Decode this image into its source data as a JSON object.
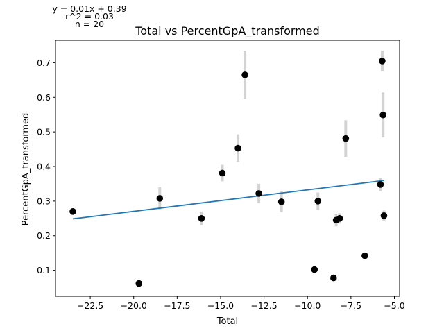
{
  "chart_data": {
    "type": "scatter",
    "title": "Total vs PercentGpA_transformed",
    "xlabel": "Total",
    "ylabel": "PercentGpA_transformed",
    "xlim": [
      -24.5,
      -4.7
    ],
    "ylim": [
      0.025,
      0.765
    ],
    "x_ticks": [
      -22.5,
      -20.0,
      -17.5,
      -15.0,
      -12.5,
      -10.0,
      -7.5,
      -5.0
    ],
    "x_tick_labels": [
      "−22.5",
      "−20.0",
      "−17.5",
      "−15.0",
      "−12.5",
      "−10.0",
      "−7.5",
      "−5.0"
    ],
    "y_ticks": [
      0.1,
      0.2,
      0.3,
      0.4,
      0.5,
      0.6,
      0.7
    ],
    "y_tick_labels": [
      "0.1",
      "0.2",
      "0.3",
      "0.4",
      "0.5",
      "0.6",
      "0.7"
    ],
    "annotations": [
      "y = 0.01x + 0.39",
      "r^2 = 0.03",
      "n = 20"
    ],
    "grid": false,
    "colors": {
      "points": "#000000",
      "fit_line": "#1f77b4",
      "error_bars": "#d3d3d3"
    },
    "fit_line": {
      "slope": 0.0062,
      "intercept": 0.3944,
      "x_range": [
        -23.5,
        -5.6
      ]
    },
    "points": [
      {
        "x": -23.5,
        "y": 0.27,
        "err": 0.0
      },
      {
        "x": -19.7,
        "y": 0.062,
        "err": 0.0
      },
      {
        "x": -18.5,
        "y": 0.308,
        "err": 0.032
      },
      {
        "x": -16.1,
        "y": 0.25,
        "err": 0.02
      },
      {
        "x": -14.9,
        "y": 0.381,
        "err": 0.024
      },
      {
        "x": -14.0,
        "y": 0.453,
        "err": 0.04
      },
      {
        "x": -13.6,
        "y": 0.665,
        "err": 0.07
      },
      {
        "x": -12.8,
        "y": 0.322,
        "err": 0.028
      },
      {
        "x": -11.5,
        "y": 0.298,
        "err": 0.03
      },
      {
        "x": -9.6,
        "y": 0.102,
        "err": 0.0
      },
      {
        "x": -9.4,
        "y": 0.3,
        "err": 0.025
      },
      {
        "x": -8.5,
        "y": 0.078,
        "err": 0.0
      },
      {
        "x": -8.35,
        "y": 0.245,
        "err": 0.018
      },
      {
        "x": -8.15,
        "y": 0.25,
        "err": 0.015
      },
      {
        "x": -7.8,
        "y": 0.481,
        "err": 0.053
      },
      {
        "x": -6.7,
        "y": 0.142,
        "err": 0.0
      },
      {
        "x": -5.8,
        "y": 0.348,
        "err": 0.02
      },
      {
        "x": -5.7,
        "y": 0.705,
        "err": 0.03
      },
      {
        "x": -5.65,
        "y": 0.549,
        "err": 0.065
      },
      {
        "x": -5.6,
        "y": 0.258,
        "err": 0.015
      }
    ]
  }
}
